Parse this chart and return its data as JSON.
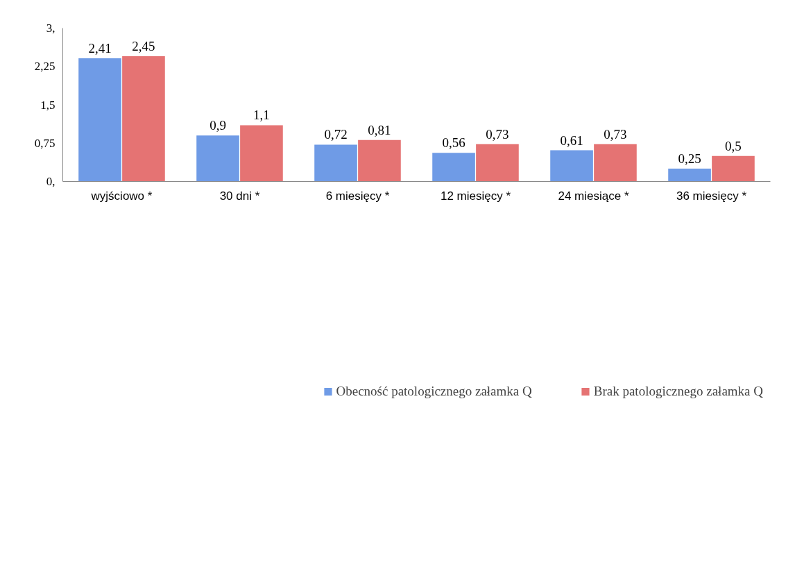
{
  "chart_data": {
    "type": "bar",
    "categories": [
      "wyjściowo *",
      "30 dni *",
      "6 miesięcy *",
      "12 miesięcy *",
      "24 miesiące *",
      "36 miesięcy *"
    ],
    "series": [
      {
        "name": "Obecność patologicznego załamka Q",
        "color": "#6f9be6",
        "values": [
          2.41,
          0.9,
          0.72,
          0.56,
          0.61,
          0.25
        ],
        "value_labels": [
          "2,41",
          "0,9",
          "0,72",
          "0,56",
          "0,61",
          "0,25"
        ]
      },
      {
        "name": "Brak patologicznego załamka Q",
        "color": "#e57373",
        "values": [
          2.45,
          1.1,
          0.81,
          0.73,
          0.73,
          0.5
        ],
        "value_labels": [
          "2,45",
          "1,1",
          "0,81",
          "0,73",
          "0,73",
          "0,5"
        ]
      }
    ],
    "ylim": [
      0,
      3
    ],
    "yticks": [
      {
        "value": 0,
        "label": "0,"
      },
      {
        "value": 0.75,
        "label": "0,75"
      },
      {
        "value": 1.5,
        "label": "1,5"
      },
      {
        "value": 2.25,
        "label": "2,25"
      },
      {
        "value": 3,
        "label": "3,"
      }
    ],
    "grid": false,
    "legend": "bottom"
  }
}
